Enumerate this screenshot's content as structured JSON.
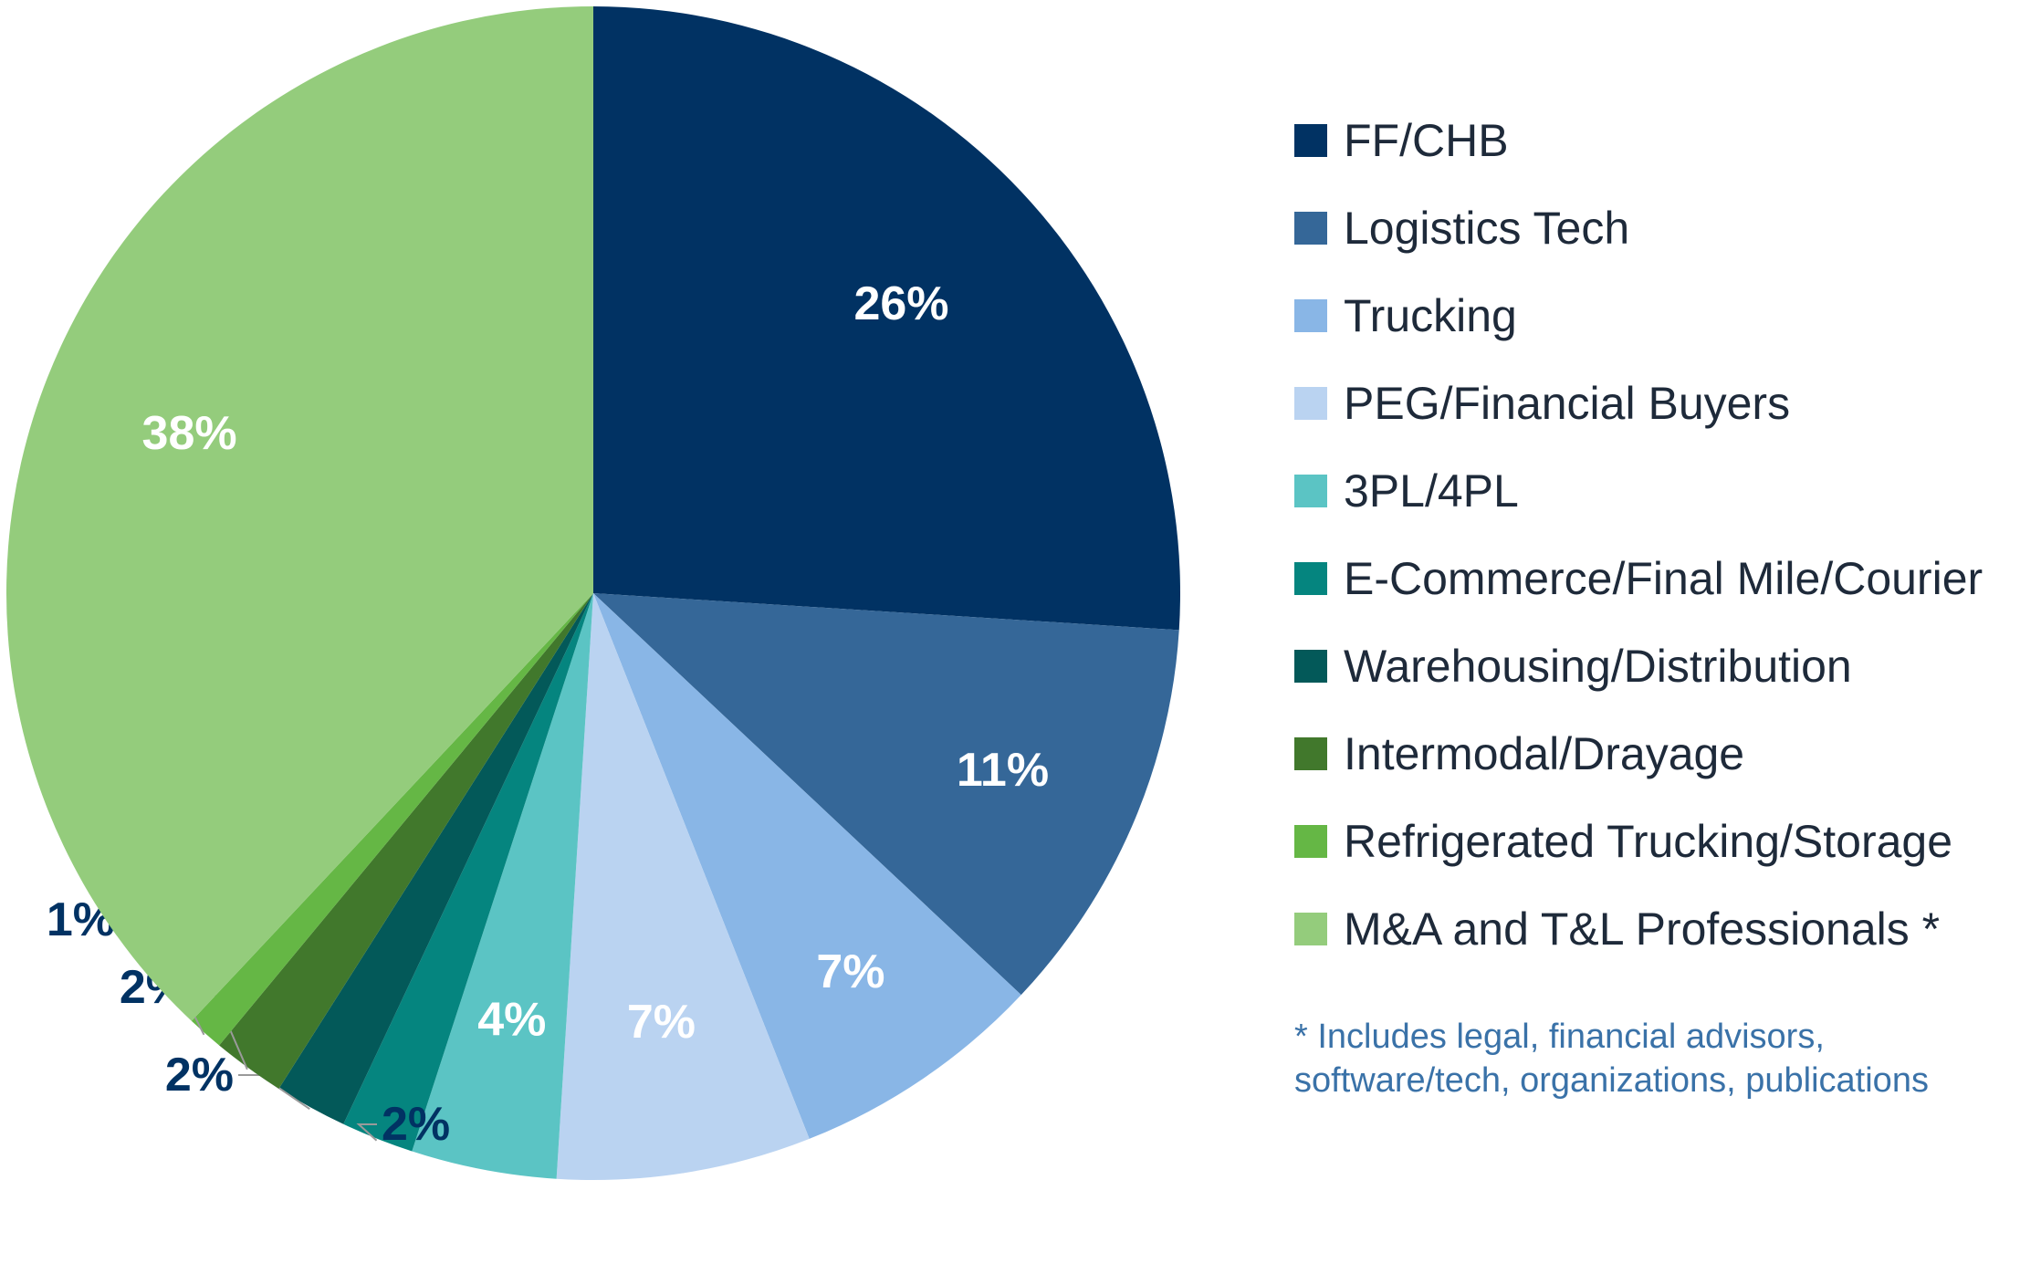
{
  "chart_data": {
    "type": "pie",
    "title": "",
    "slices": [
      {
        "name": "FF/CHB",
        "value": 26,
        "label": "26%",
        "color": "#013263"
      },
      {
        "name": "Logistics Tech",
        "value": 11,
        "label": "11%",
        "color": "#356798"
      },
      {
        "name": "Trucking",
        "value": 7,
        "label": "7%",
        "color": "#89b6e6"
      },
      {
        "name": "PEG/Financial Buyers",
        "value": 7,
        "label": "7%",
        "color": "#bad3f1"
      },
      {
        "name": "3PL/4PL",
        "value": 4,
        "label": "4%",
        "color": "#5bc4c4"
      },
      {
        "name": "E-Commerce/Final Mile/Courier",
        "value": 2,
        "label": "2%",
        "color": "#05857f"
      },
      {
        "name": "Warehousing/Distribution",
        "value": 2,
        "label": "2%",
        "color": "#035959"
      },
      {
        "name": "Intermodal/Drayage",
        "value": 2,
        "label": "2%",
        "color": "#41782c"
      },
      {
        "name": "Refrigerated Trucking/Storage",
        "value": 1,
        "label": "1%",
        "color": "#65b745"
      },
      {
        "name": "M&A and T&L Professionals *",
        "value": 38,
        "label": "38%",
        "color": "#94cc7c"
      }
    ],
    "legend_position": "right"
  },
  "footnote": {
    "line1": "* Includes legal, financial advisors,",
    "line2": "software/tech, organizations, publications"
  },
  "colors": {
    "outside_label": "#013263",
    "inside_label": "#ffffff",
    "leader_line": "#9a9a9a"
  }
}
